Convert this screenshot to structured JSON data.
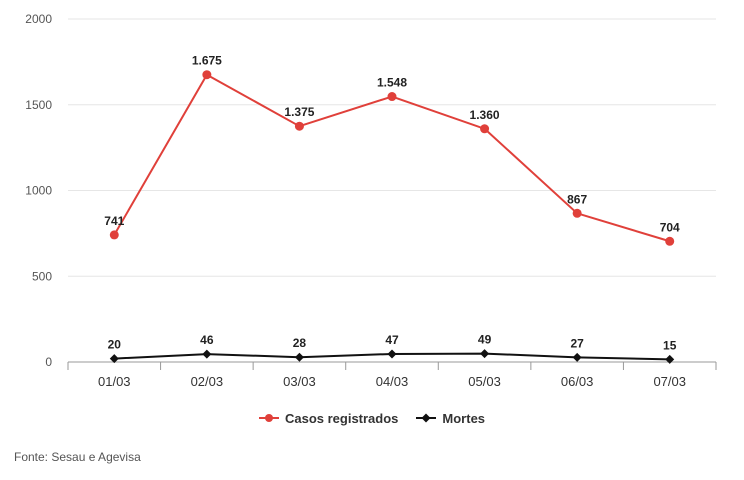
{
  "chart_data": {
    "type": "line",
    "categories": [
      "01/03",
      "02/03",
      "03/03",
      "04/03",
      "05/03",
      "06/03",
      "07/03"
    ],
    "ylim": [
      0,
      2000
    ],
    "yticks": [
      0,
      500,
      1000,
      1500,
      2000
    ],
    "grid": true,
    "legend_position": "bottom",
    "series": [
      {
        "name": "Casos registrados",
        "color": "#e0403a",
        "marker": "circle",
        "values": [
          741,
          1675,
          1375,
          1548,
          1360,
          867,
          704
        ],
        "labels": [
          "741",
          "1.675",
          "1.375",
          "1.548",
          "1.360",
          "867",
          "704"
        ]
      },
      {
        "name": "Mortes",
        "color": "#111111",
        "marker": "diamond",
        "values": [
          20,
          46,
          28,
          47,
          49,
          27,
          15
        ],
        "labels": [
          "20",
          "46",
          "28",
          "47",
          "49",
          "27",
          "15"
        ]
      }
    ]
  },
  "source": "Fonte: Sesau e Agevisa"
}
